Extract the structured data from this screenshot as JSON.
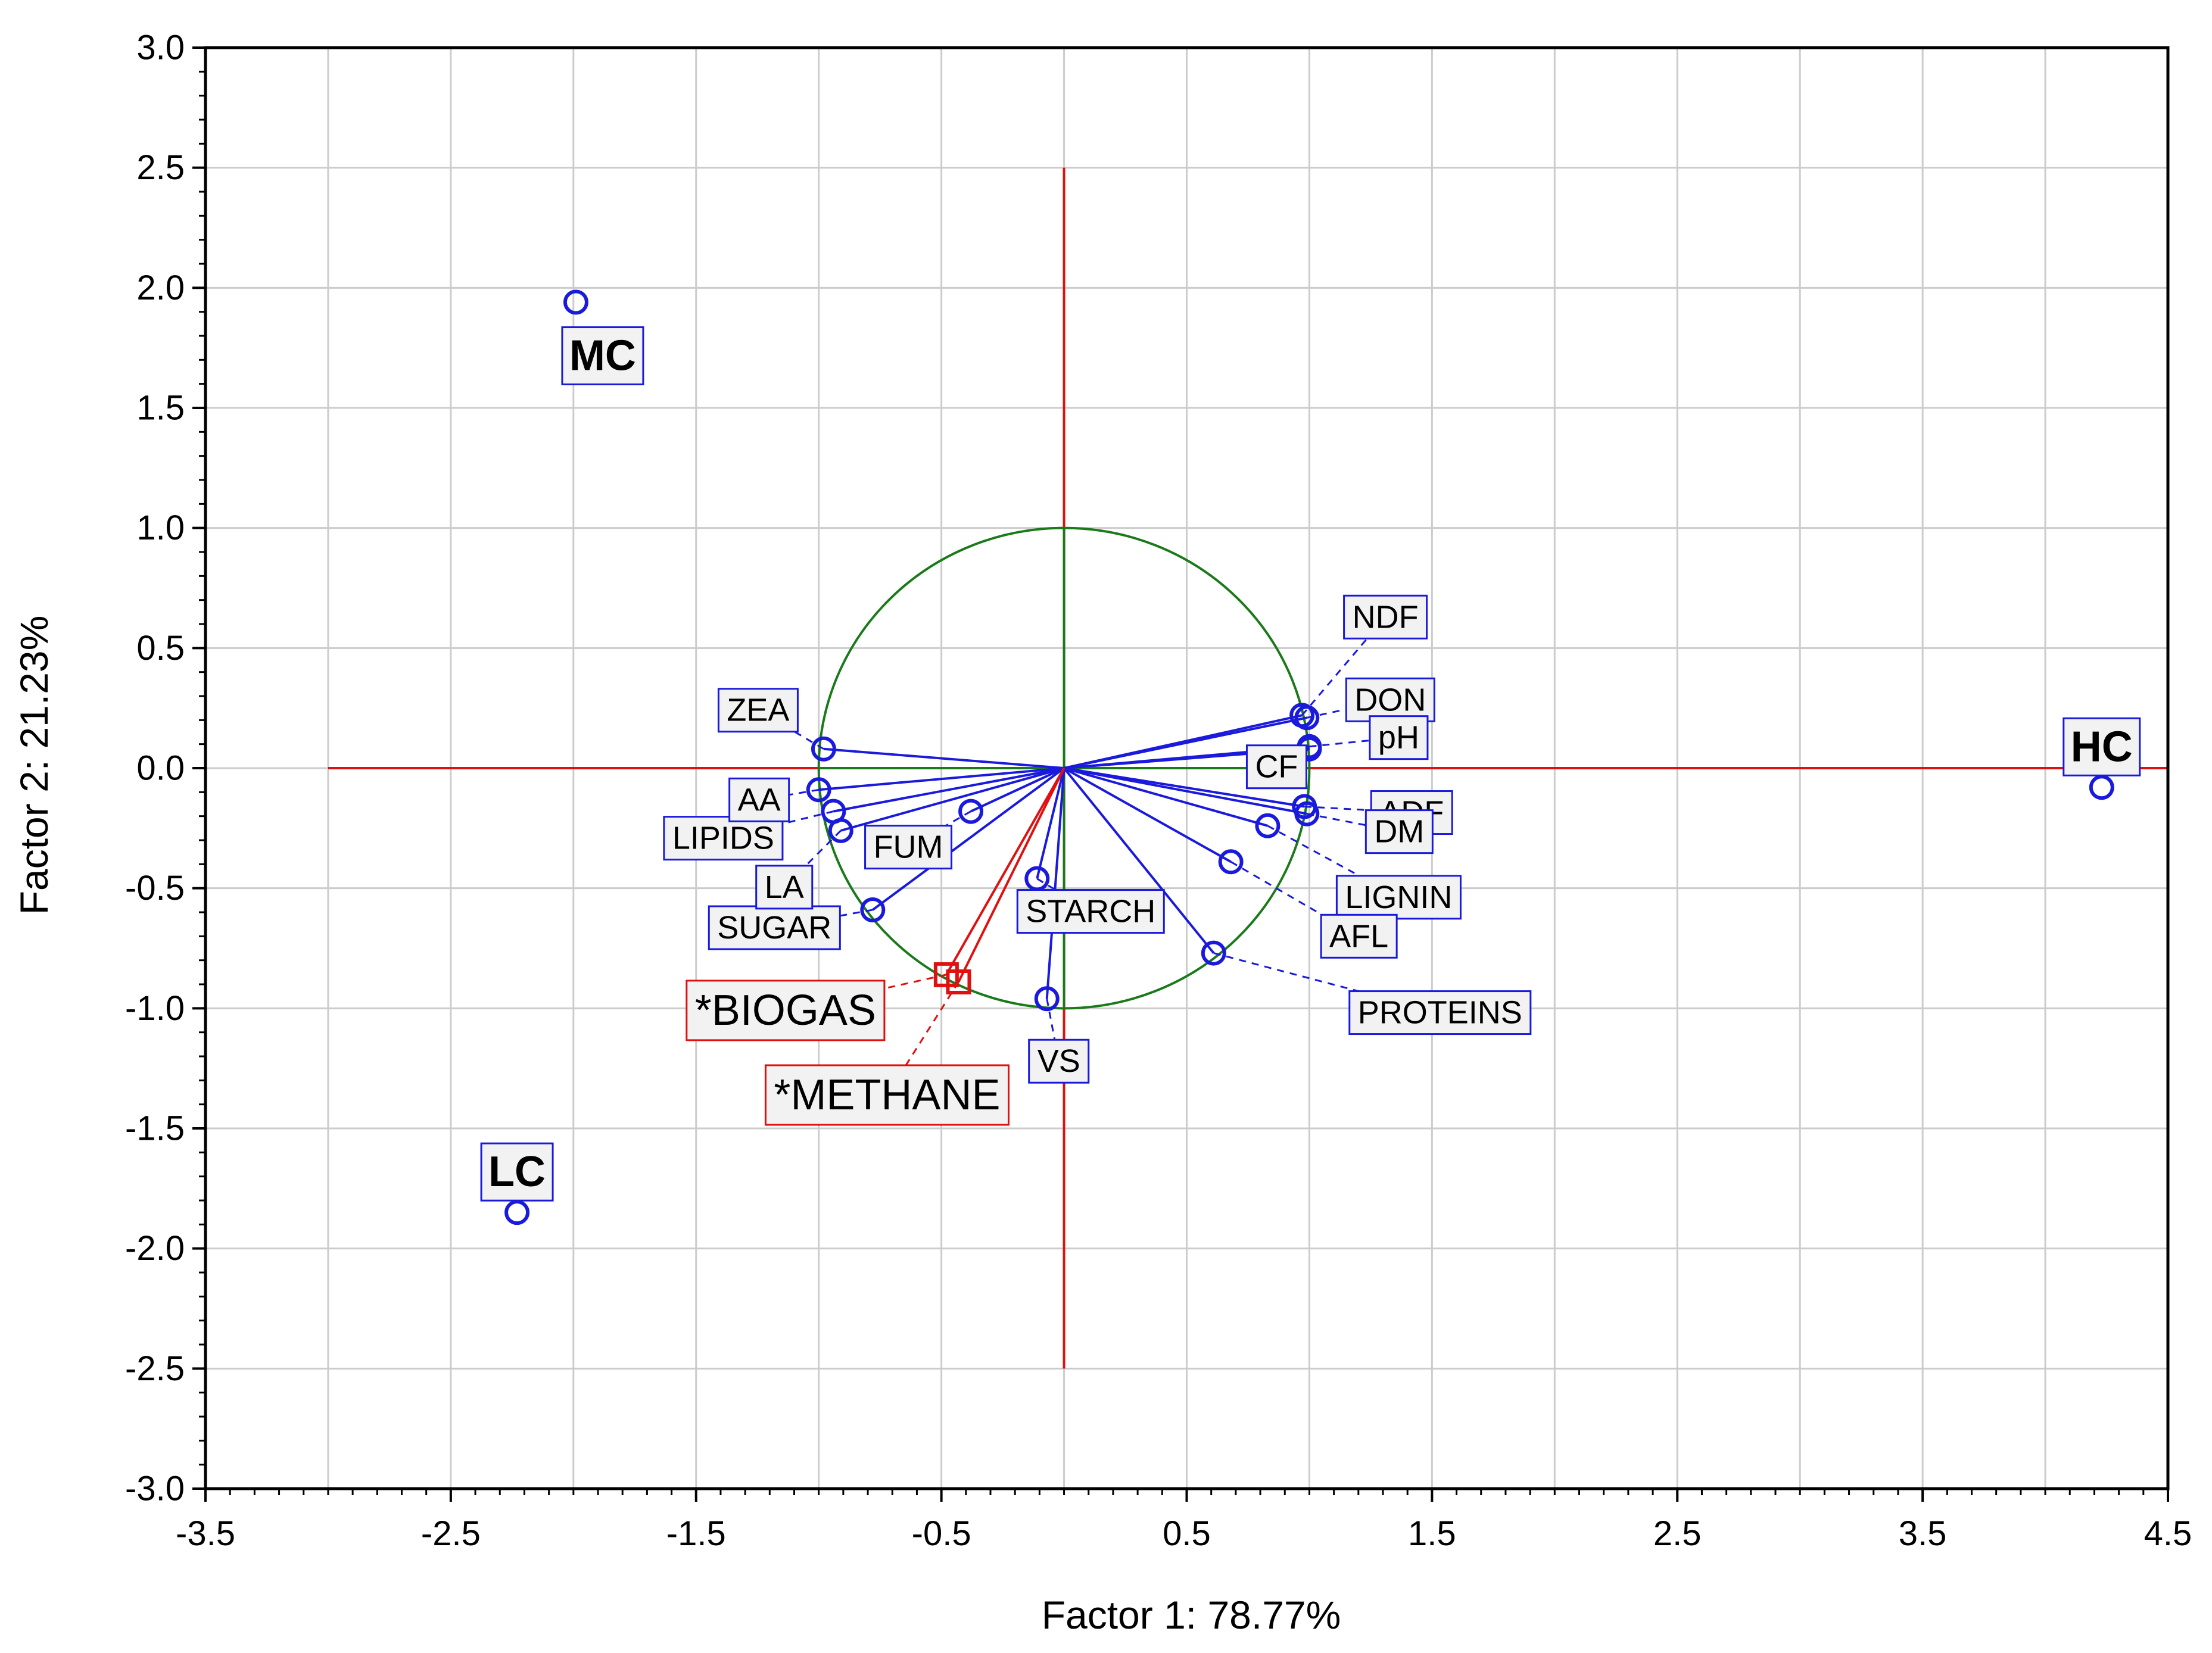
{
  "chart_data": {
    "type": "scatter",
    "title": "",
    "xlabel": "Factor 1: 78.77%",
    "ylabel": "Factor 2: 21.23%",
    "xlim": [
      -3.5,
      4.5
    ],
    "ylim": [
      -3.0,
      3.0
    ],
    "xticks": [
      -3.5,
      -2.5,
      -1.5,
      -0.5,
      0.5,
      1.5,
      2.5,
      3.5,
      4.5
    ],
    "xtick_labels": [
      "-3.5",
      "-2.5",
      "-1.5",
      "-0.5",
      "0.5",
      "1.5",
      "2.5",
      "3.5",
      "4.5"
    ],
    "yticks": [
      3.0,
      2.5,
      2.0,
      1.5,
      1.0,
      0.5,
      0.0,
      -0.5,
      -1.0,
      -1.5,
      -2.0,
      -2.5,
      -3.0
    ],
    "ytick_labels": [
      "3.0",
      "2.5",
      "2.0",
      "1.5",
      "1.0",
      "0.5",
      "0.0",
      "-0.5",
      "-1.0",
      "-1.5",
      "-2.0",
      "-2.5",
      "-3.0"
    ],
    "grid": true,
    "unit_circle_radius": 1.0,
    "colors": {
      "variables": "#1a1adc",
      "supplementary": "#e01010",
      "circle": "#1a7a1a",
      "axes": "#e01010",
      "grid": "#cccccc"
    },
    "variables": [
      {
        "name": "NDF",
        "x": 0.97,
        "y": 0.22
      },
      {
        "name": "DON",
        "x": 0.99,
        "y": 0.21
      },
      {
        "name": "CF",
        "x": 1.0,
        "y": 0.08
      },
      {
        "name": "pH",
        "x": 1.0,
        "y": 0.09
      },
      {
        "name": "ADF",
        "x": 0.98,
        "y": -0.16
      },
      {
        "name": "DM",
        "x": 0.99,
        "y": -0.19
      },
      {
        "name": "LIGNIN",
        "x": 0.83,
        "y": -0.24
      },
      {
        "name": "AFL",
        "x": 0.68,
        "y": -0.39
      },
      {
        "name": "PROTEINS",
        "x": 0.61,
        "y": -0.77
      },
      {
        "name": "VS",
        "x": -0.07,
        "y": -0.96
      },
      {
        "name": "STARCH",
        "x": -0.11,
        "y": -0.46
      },
      {
        "name": "FUM",
        "x": -0.38,
        "y": -0.18
      },
      {
        "name": "SUGAR",
        "x": -0.78,
        "y": -0.59
      },
      {
        "name": "LA",
        "x": -0.91,
        "y": -0.26
      },
      {
        "name": "LIPIDS",
        "x": -0.94,
        "y": -0.18
      },
      {
        "name": "AA",
        "x": -1.0,
        "y": -0.09
      },
      {
        "name": "ZEA",
        "x": -0.98,
        "y": 0.08
      }
    ],
    "supplementary": [
      {
        "name": "*BIOGAS",
        "x": -0.48,
        "y": -0.86
      },
      {
        "name": "*METHANE",
        "x": -0.43,
        "y": -0.89
      }
    ],
    "observations": [
      {
        "name": "MC",
        "x": -1.99,
        "y": 1.94
      },
      {
        "name": "LC",
        "x": -2.23,
        "y": -1.85
      },
      {
        "name": "HC",
        "x": 4.23,
        "y": -0.08
      }
    ]
  }
}
